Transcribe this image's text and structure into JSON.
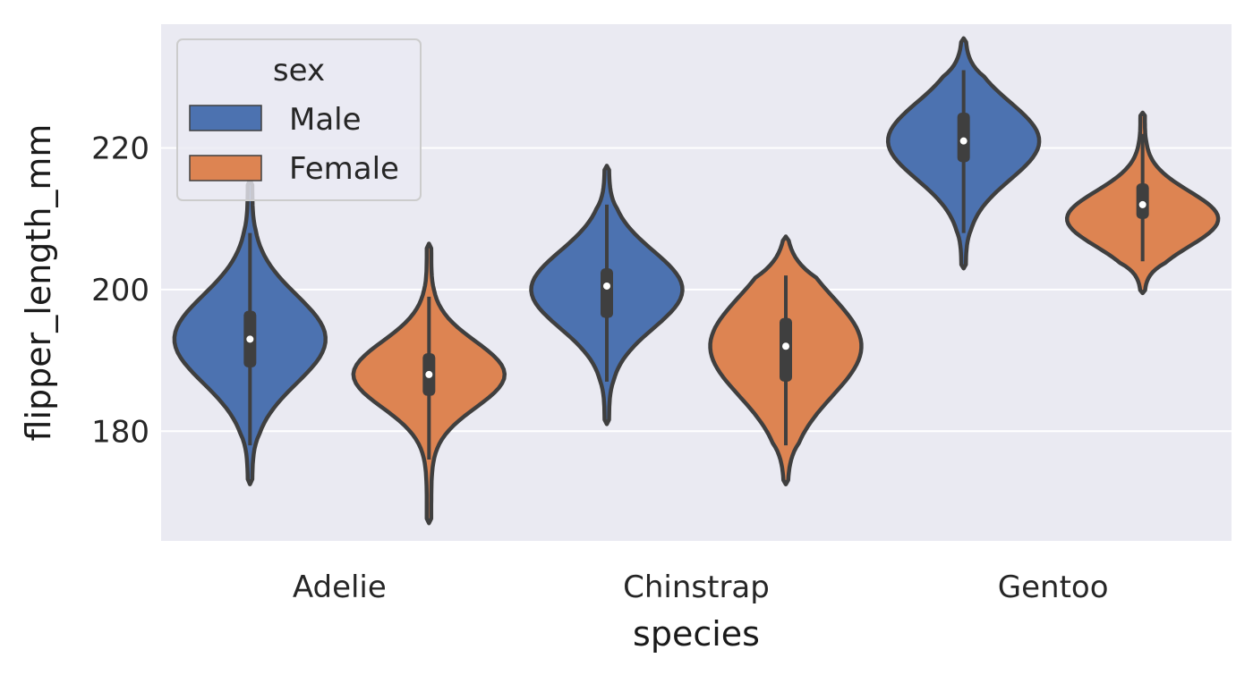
{
  "chart_data": {
    "type": "violin",
    "title": "",
    "xlabel": "species",
    "ylabel": "flipper_length_mm",
    "categories": [
      "Adelie",
      "Chinstrap",
      "Gentoo"
    ],
    "y_ticks": [
      180,
      200,
      220
    ],
    "ylim": [
      164.5,
      237.5
    ],
    "grid": true,
    "legend": {
      "title": "sex",
      "placement": "top-left"
    },
    "colors": {
      "background": "#EAEAF2",
      "grid": "#FFFFFF",
      "outline": "#3F3F3F",
      "Male": "#4C72B0",
      "Female": "#DD8452"
    },
    "series": [
      {
        "name": "Male",
        "violins": [
          {
            "category": "Adelie",
            "min": 178,
            "q1": 189,
            "median": 193,
            "q3": 197,
            "max": 208,
            "kde_min": 172.5,
            "kde_max": 215.5,
            "mode": 193
          },
          {
            "category": "Chinstrap",
            "min": 187,
            "q1": 196,
            "median": 200.5,
            "q3": 203,
            "max": 212,
            "kde_min": 181,
            "kde_max": 217.5,
            "mode": 200
          },
          {
            "category": "Gentoo",
            "min": 208,
            "q1": 218,
            "median": 221,
            "q3": 225,
            "max": 231,
            "kde_min": 203,
            "kde_max": 235.5,
            "mode": 221
          }
        ]
      },
      {
        "name": "Female",
        "violins": [
          {
            "category": "Adelie",
            "min": 176,
            "q1": 185,
            "median": 188,
            "q3": 191,
            "max": 199,
            "kde_min": 167,
            "kde_max": 206.5,
            "mode": 188
          },
          {
            "category": "Chinstrap",
            "min": 178,
            "q1": 187,
            "median": 192,
            "q3": 196,
            "max": 202,
            "kde_min": 172.5,
            "kde_max": 207.5,
            "mode": 192
          },
          {
            "category": "Gentoo",
            "min": 204,
            "q1": 210,
            "median": 212,
            "q3": 215,
            "max": 222,
            "kde_min": 199.5,
            "kde_max": 225,
            "mode": 210
          }
        ]
      }
    ]
  }
}
